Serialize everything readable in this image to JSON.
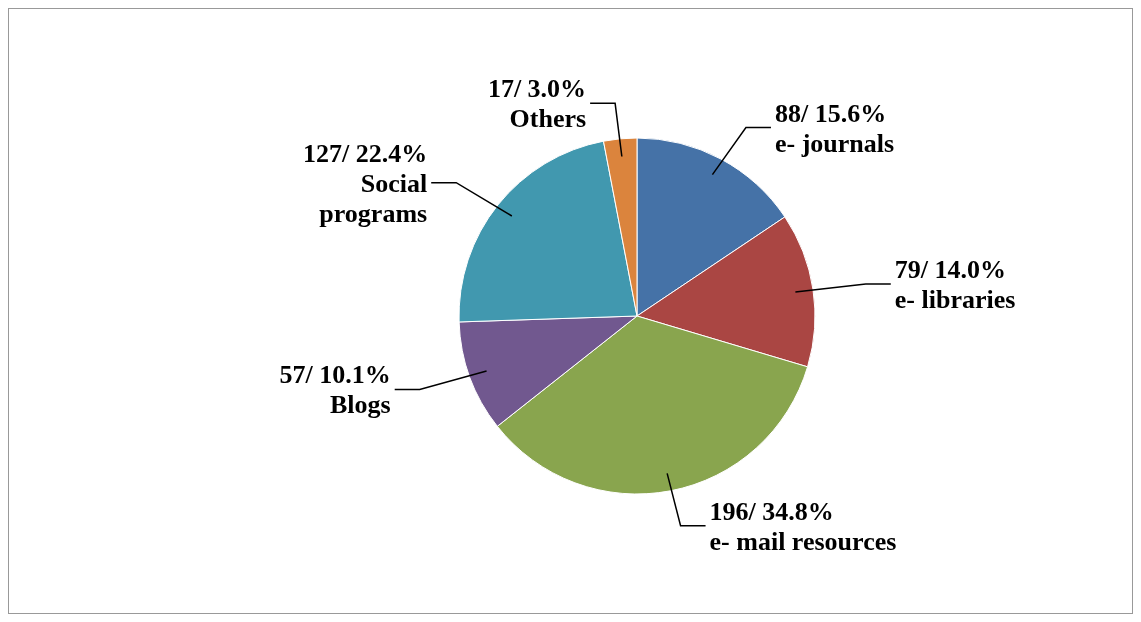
{
  "chart_data": {
    "type": "pie",
    "categories": [
      "e- journals",
      "e- libraries",
      "e- mail resources",
      "Blogs",
      "Social\nprograms",
      "Others"
    ],
    "values": [
      88,
      79,
      196,
      57,
      127,
      17
    ],
    "value_labels": [
      "88/ 15.6%",
      "79/ 14.0%",
      "196/ 34.8%",
      "57/ 10.1%",
      "127/ 22.4%",
      "17/ 3.0%"
    ],
    "colors": [
      "#4572a7",
      "#aa4643",
      "#89a54e",
      "#71588f",
      "#4198af",
      "#db843d"
    ]
  }
}
